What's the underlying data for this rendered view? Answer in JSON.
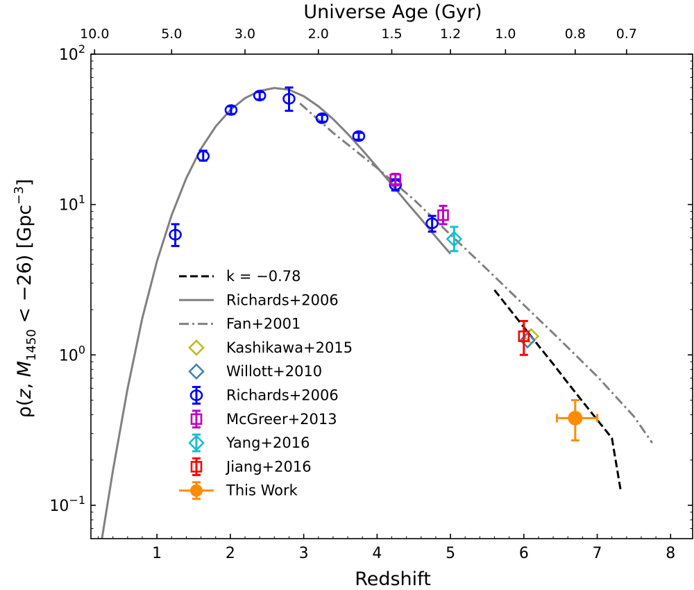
{
  "chart_data": {
    "type": "scatter",
    "title": "",
    "xlabel": "Redshift",
    "ylabel": "ρ(z, M1450 < −26) [Gpc−3]",
    "ylabel_parts": {
      "rho": "ρ(",
      "z": "z",
      "sep": ", ",
      "M": "M",
      "sub": "1450",
      "rest": " < −26) [Gpc",
      "sup": "−3",
      "end": "]"
    },
    "top_xlabel": "Universe Age (Gyr)",
    "xlim": [
      0.1,
      8.3
    ],
    "ylim": [
      0.06,
      100
    ],
    "yscale": "log",
    "x_ticks": [
      1,
      2,
      3,
      4,
      5,
      6,
      7,
      8
    ],
    "y_ticks": [
      {
        "value": 0.1,
        "base": "10",
        "exp": "−1"
      },
      {
        "value": 1,
        "base": "10",
        "exp": "0"
      },
      {
        "value": 10,
        "base": "10",
        "exp": "1"
      },
      {
        "value": 100,
        "base": "10",
        "exp": "2"
      }
    ],
    "top_ticks": [
      {
        "z": 0.15,
        "label": "10.0"
      },
      {
        "z": 1.2,
        "label": "5.0"
      },
      {
        "z": 2.2,
        "label": "3.0"
      },
      {
        "z": 3.2,
        "label": "2.0"
      },
      {
        "z": 4.2,
        "label": "1.5"
      },
      {
        "z": 5.0,
        "label": "1.2"
      },
      {
        "z": 5.75,
        "label": "1.0"
      },
      {
        "z": 6.7,
        "label": "0.8"
      },
      {
        "z": 7.4,
        "label": "0.7"
      }
    ],
    "series": [
      {
        "name": "k = −0.78",
        "kind": "line",
        "dash": "dashed",
        "color": "#000000",
        "x": [
          5.6,
          5.8,
          6.0,
          6.2,
          6.4,
          6.6,
          6.8,
          7.0,
          7.2,
          7.32
        ],
        "y": [
          2.7,
          2.03,
          1.53,
          1.15,
          0.87,
          0.65,
          0.49,
          0.37,
          0.28,
          0.125
        ]
      },
      {
        "name": "Richards+2006",
        "kind": "line",
        "dash": "solid",
        "color": "#808080",
        "x": [
          0.25,
          0.4,
          0.6,
          0.8,
          1.0,
          1.2,
          1.4,
          1.6,
          1.8,
          2.0,
          2.2,
          2.4,
          2.6,
          2.8,
          3.0,
          3.2,
          3.4,
          3.6,
          3.8,
          4.0,
          4.2,
          4.4,
          4.6,
          4.8,
          5.0
        ],
        "y": [
          0.06,
          0.17,
          0.6,
          1.75,
          4.2,
          8.5,
          15.0,
          23.5,
          33.0,
          42.5,
          51.0,
          57.0,
          59.5,
          58.0,
          52.5,
          45.0,
          37.0,
          29.5,
          23.0,
          17.7,
          13.6,
          10.4,
          8.0,
          6.1,
          4.7
        ]
      },
      {
        "name": "Fan+2001",
        "kind": "line",
        "dash": "dashdot",
        "color": "#808080",
        "x": [
          2.95,
          3.4,
          4.0,
          4.5,
          5.0,
          5.5,
          6.0,
          6.5,
          7.0,
          7.5,
          7.75
        ],
        "y": [
          47.0,
          30.0,
          17.5,
          10.8,
          6.3,
          3.7,
          2.15,
          1.25,
          0.72,
          0.39,
          0.26
        ]
      },
      {
        "name": "Kashikawa+2015",
        "kind": "points",
        "marker": "diamond",
        "color": "#bcbd22",
        "points": [
          {
            "x": 6.1,
            "y": 1.33
          }
        ]
      },
      {
        "name": "Willott+2010",
        "kind": "points",
        "marker": "diamond",
        "color": "#4682b4",
        "points": [
          {
            "x": 6.05,
            "y": 1.25
          }
        ]
      },
      {
        "name": "Richards+2006",
        "kind": "points",
        "marker": "circle",
        "color": "#0000ff",
        "points": [
          {
            "x": 1.25,
            "y": 6.3,
            "ylo": 5.3,
            "yhi": 7.4
          },
          {
            "x": 1.63,
            "y": 21.0,
            "ylo": 19.6,
            "yhi": 22.8
          },
          {
            "x": 2.01,
            "y": 42.5,
            "ylo": 40.0,
            "yhi": 45.0
          },
          {
            "x": 2.4,
            "y": 53.0,
            "ylo": 50.0,
            "yhi": 56.0
          },
          {
            "x": 2.8,
            "y": 50.5,
            "ylo": 42.0,
            "yhi": 60.0
          },
          {
            "x": 3.25,
            "y": 37.5,
            "ylo": 35.5,
            "yhi": 39.5
          },
          {
            "x": 3.75,
            "y": 28.5,
            "ylo": 27.0,
            "yhi": 30.0
          },
          {
            "x": 4.25,
            "y": 13.5,
            "ylo": 12.4,
            "yhi": 14.7
          },
          {
            "x": 4.75,
            "y": 7.5,
            "ylo": 6.6,
            "yhi": 8.4
          }
        ]
      },
      {
        "name": "McGreer+2013",
        "kind": "points",
        "marker": "square",
        "color": "#bf00bf",
        "points": [
          {
            "x": 4.25,
            "y": 14.7,
            "ylo": 13.4,
            "yhi": 16.0
          },
          {
            "x": 4.9,
            "y": 8.5,
            "ylo": 7.4,
            "yhi": 9.8
          }
        ]
      },
      {
        "name": "Yang+2016",
        "kind": "points",
        "marker": "diamond",
        "color": "#17becf",
        "points": [
          {
            "x": 5.05,
            "y": 5.9,
            "ylo": 4.9,
            "yhi": 7.1
          }
        ]
      },
      {
        "name": "Jiang+2016",
        "kind": "points",
        "marker": "square",
        "color": "#ff0000",
        "points": [
          {
            "x": 6.0,
            "y": 1.33,
            "ylo": 1.0,
            "yhi": 1.68
          }
        ]
      },
      {
        "name": "This Work",
        "kind": "points",
        "marker": "filled-circle",
        "color": "#ff8c00",
        "points": [
          {
            "x": 6.7,
            "y": 0.38,
            "ylo": 0.27,
            "yhi": 0.5,
            "xlo": 6.45,
            "xhi": 7.0
          }
        ]
      }
    ],
    "legend": {
      "placement": "center-left",
      "entries": [
        {
          "label": "k = −0.78",
          "style": "dashed-line",
          "color": "#000000"
        },
        {
          "label": "Richards+2006",
          "style": "solid-line",
          "color": "#808080"
        },
        {
          "label": "Fan+2001",
          "style": "dashdot-line",
          "color": "#808080"
        },
        {
          "label": "Kashikawa+2015",
          "style": "diamond",
          "color": "#bcbd22"
        },
        {
          "label": "Willott+2010",
          "style": "diamond",
          "color": "#4682b4"
        },
        {
          "label": "Richards+2006",
          "style": "circle-err",
          "color": "#0000ff"
        },
        {
          "label": "McGreer+2013",
          "style": "square-err",
          "color": "#bf00bf"
        },
        {
          "label": "Yang+2016",
          "style": "diamond-err",
          "color": "#17becf"
        },
        {
          "label": "Jiang+2016",
          "style": "square-err",
          "color": "#ff0000"
        },
        {
          "label": "This Work",
          "style": "filled-circle-err",
          "color": "#ff8c00"
        }
      ]
    }
  }
}
